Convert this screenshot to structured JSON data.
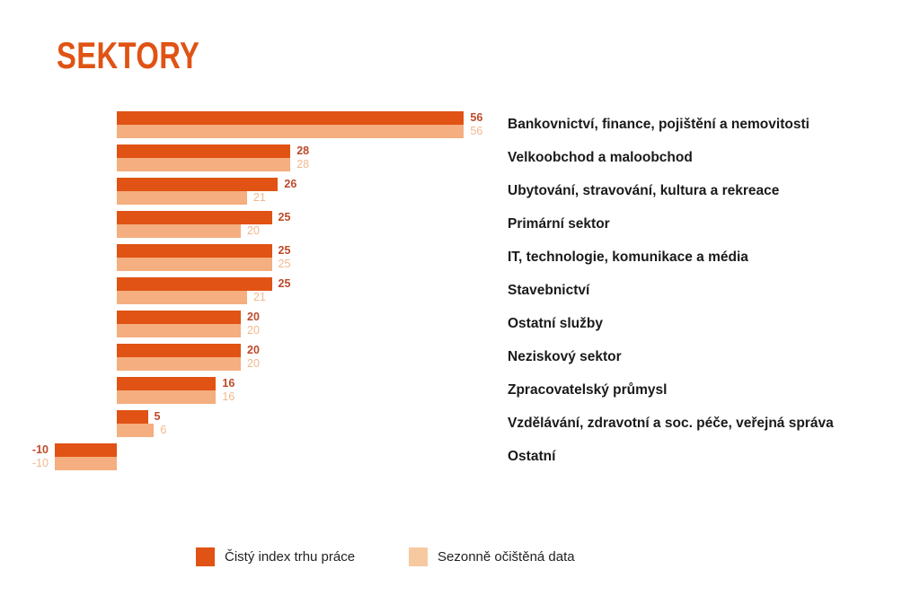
{
  "title": "SEKTORY",
  "chart_data": {
    "type": "bar",
    "orientation": "horizontal",
    "title": "SEKTORY",
    "categories": [
      "Bankovnictví, finance, pojištění a nemovitosti",
      "Velkoobchod a maloobchod",
      "Ubytování, stravování, kultura a rekreace",
      "Primární sektor",
      "IT, technologie, komunikace a média",
      "Stavebnictví",
      "Ostatní služby",
      "Neziskový sektor",
      "Zpracovatelský průmysl",
      "Vzdělávání, zdravotní a soc. péče, veřejná správa",
      "Ostatní"
    ],
    "series": [
      {
        "name": "Čistý index trhu práce",
        "bar_color": "#E05314",
        "label_color": "#BC4A2A",
        "values": [
          56,
          28,
          26,
          25,
          25,
          25,
          20,
          20,
          16,
          5,
          -10
        ]
      },
      {
        "name": "Sezonně očištěná data",
        "bar_color": "#F4AE7F",
        "label_color": "#F0B88F",
        "values": [
          56,
          28,
          21,
          20,
          25,
          21,
          20,
          20,
          16,
          6,
          -10
        ]
      }
    ],
    "xlim": [
      -10,
      56
    ],
    "grid": false,
    "value_labels": "shown at bar ends",
    "legend_position": "bottom"
  },
  "legend": {
    "items": [
      {
        "label": "Čistý index trhu práce",
        "color": "#E05314"
      },
      {
        "label": "Sezonně očištěná data",
        "color": "#F7C9A0"
      }
    ]
  },
  "colors": {
    "title": "#E05314",
    "background": "#ffffff",
    "category_text": "#1a1a1a"
  }
}
